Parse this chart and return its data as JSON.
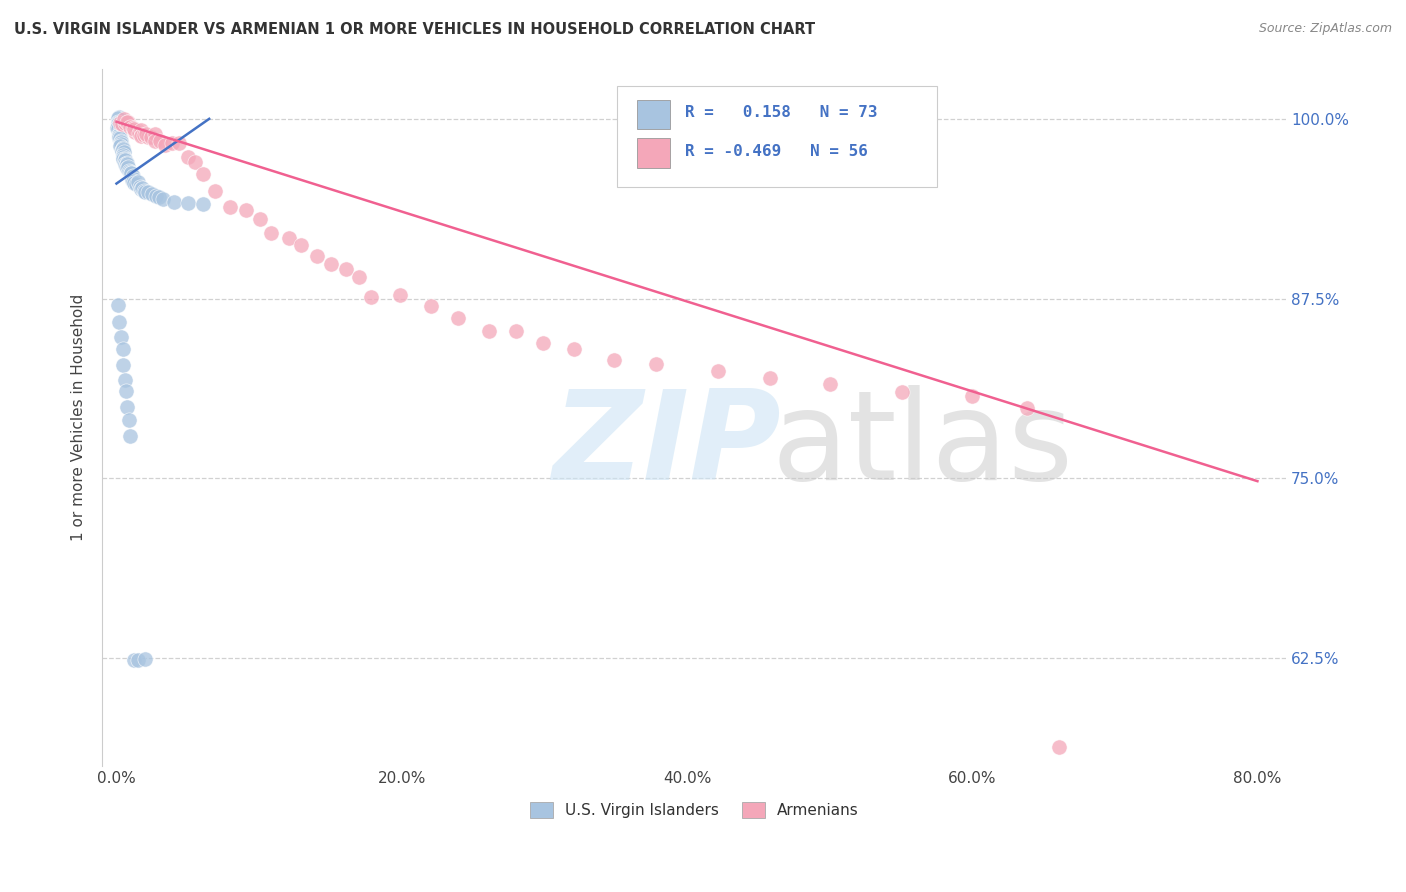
{
  "title": "U.S. VIRGIN ISLANDER VS ARMENIAN 1 OR MORE VEHICLES IN HOUSEHOLD CORRELATION CHART",
  "source": "Source: ZipAtlas.com",
  "ylabel_label": "1 or more Vehicles in Household",
  "legend_label1": "U.S. Virgin Islanders",
  "legend_label2": "Armenians",
  "r1": 0.158,
  "n1": 73,
  "r2": -0.469,
  "n2": 56,
  "color1": "#a8c4e0",
  "color2": "#f4a7b9",
  "trend_color1": "#4472c4",
  "trend_color2": "#f06090",
  "x_tick_vals": [
    0.0,
    0.2,
    0.4,
    0.6,
    0.8
  ],
  "x_tick_labels": [
    "0.0%",
    "20.0%",
    "40.0%",
    "60.0%",
    "80.0%"
  ],
  "y_tick_vals": [
    0.625,
    0.75,
    0.875,
    1.0
  ],
  "y_tick_labels": [
    "62.5%",
    "75.0%",
    "87.5%",
    "100.0%"
  ],
  "xlim": [
    -0.01,
    0.82
  ],
  "ylim": [
    0.55,
    1.035
  ],
  "vi_trend_x": [
    0.0,
    0.065
  ],
  "vi_trend_y": [
    0.955,
    1.0
  ],
  "arm_trend_x": [
    0.0,
    0.8
  ],
  "arm_trend_y": [
    0.998,
    0.748
  ],
  "vi_x": [
    0.001,
    0.001,
    0.001,
    0.001,
    0.001,
    0.001,
    0.001,
    0.001,
    0.001,
    0.002,
    0.002,
    0.002,
    0.002,
    0.002,
    0.002,
    0.003,
    0.003,
    0.003,
    0.003,
    0.003,
    0.004,
    0.004,
    0.004,
    0.004,
    0.005,
    0.005,
    0.005,
    0.005,
    0.006,
    0.006,
    0.006,
    0.007,
    0.007,
    0.007,
    0.008,
    0.008,
    0.009,
    0.009,
    0.01,
    0.01,
    0.011,
    0.011,
    0.012,
    0.012,
    0.013,
    0.014,
    0.015,
    0.016,
    0.017,
    0.018,
    0.019,
    0.02,
    0.022,
    0.025,
    0.028,
    0.03,
    0.033,
    0.04,
    0.05,
    0.06,
    0.001,
    0.002,
    0.003,
    0.004,
    0.005,
    0.006,
    0.007,
    0.008,
    0.009,
    0.01,
    0.012,
    0.015,
    0.02
  ],
  "vi_y": [
    1.0,
    0.999,
    0.998,
    0.997,
    0.996,
    0.995,
    0.994,
    0.993,
    0.992,
    0.991,
    0.99,
    0.989,
    0.988,
    0.987,
    0.986,
    0.985,
    0.984,
    0.983,
    0.982,
    0.981,
    0.98,
    0.979,
    0.978,
    0.977,
    0.976,
    0.975,
    0.974,
    0.973,
    0.972,
    0.971,
    0.97,
    0.969,
    0.968,
    0.967,
    0.966,
    0.965,
    0.964,
    0.963,
    0.962,
    0.961,
    0.96,
    0.959,
    0.958,
    0.957,
    0.956,
    0.955,
    0.954,
    0.953,
    0.952,
    0.951,
    0.95,
    0.949,
    0.948,
    0.947,
    0.946,
    0.945,
    0.944,
    0.943,
    0.942,
    0.941,
    0.87,
    0.86,
    0.85,
    0.84,
    0.83,
    0.82,
    0.81,
    0.8,
    0.79,
    0.78,
    0.625,
    0.625,
    0.625
  ],
  "arm_x": [
    0.003,
    0.005,
    0.006,
    0.007,
    0.008,
    0.009,
    0.01,
    0.011,
    0.012,
    0.013,
    0.014,
    0.015,
    0.016,
    0.017,
    0.018,
    0.019,
    0.02,
    0.022,
    0.024,
    0.026,
    0.028,
    0.03,
    0.035,
    0.04,
    0.045,
    0.05,
    0.055,
    0.06,
    0.07,
    0.08,
    0.09,
    0.1,
    0.11,
    0.12,
    0.13,
    0.14,
    0.15,
    0.16,
    0.17,
    0.18,
    0.2,
    0.22,
    0.24,
    0.26,
    0.28,
    0.3,
    0.32,
    0.35,
    0.38,
    0.42,
    0.46,
    0.5,
    0.55,
    0.6,
    0.64,
    0.66
  ],
  "arm_y": [
    1.0,
    0.999,
    0.998,
    0.998,
    0.997,
    0.996,
    0.995,
    0.994,
    0.993,
    0.993,
    0.992,
    0.991,
    0.991,
    0.99,
    0.989,
    0.989,
    0.988,
    0.988,
    0.987,
    0.986,
    0.985,
    0.985,
    0.984,
    0.983,
    0.982,
    0.975,
    0.97,
    0.96,
    0.95,
    0.94,
    0.935,
    0.93,
    0.92,
    0.915,
    0.91,
    0.905,
    0.9,
    0.895,
    0.89,
    0.88,
    0.875,
    0.87,
    0.86,
    0.855,
    0.85,
    0.845,
    0.84,
    0.835,
    0.83,
    0.825,
    0.82,
    0.815,
    0.81,
    0.805,
    0.8,
    0.565
  ]
}
